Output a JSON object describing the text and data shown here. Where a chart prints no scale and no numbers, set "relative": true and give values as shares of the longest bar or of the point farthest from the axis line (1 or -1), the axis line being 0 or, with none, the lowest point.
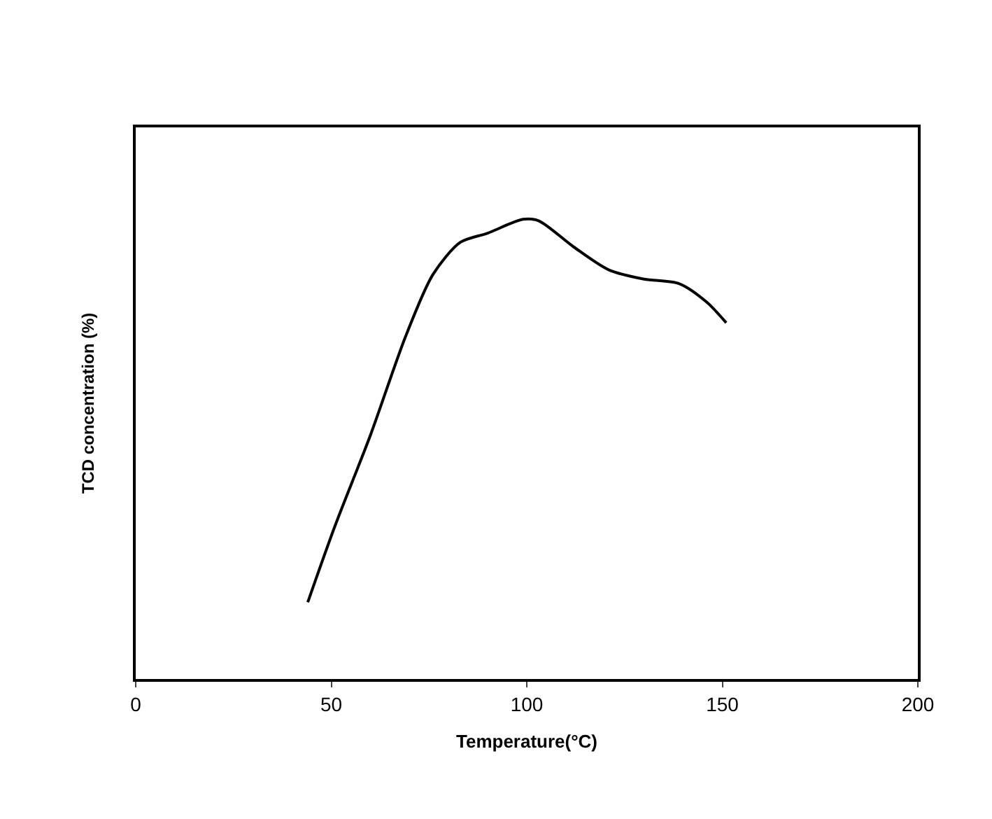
{
  "chart_data": {
    "type": "line",
    "relative": true,
    "xlabel": "Temperature(°C)",
    "ylabel": "TCD concentration (%)",
    "xlim": [
      0,
      200
    ],
    "xticks": [
      0,
      50,
      100,
      150,
      200
    ],
    "legend": false,
    "marker": "none",
    "line_style": "solid",
    "series": [
      {
        "color": "#000000",
        "x": [
          44,
          51,
          60,
          69,
          76,
          83,
          90,
          99,
          103,
          112,
          121,
          130,
          139,
          146,
          151
        ],
        "values": [
          0.167,
          0.334,
          0.53,
          0.745,
          0.88,
          0.95,
          0.97,
          1.0,
          0.997,
          0.94,
          0.89,
          0.87,
          0.86,
          0.82,
          0.775
        ]
      }
    ]
  }
}
